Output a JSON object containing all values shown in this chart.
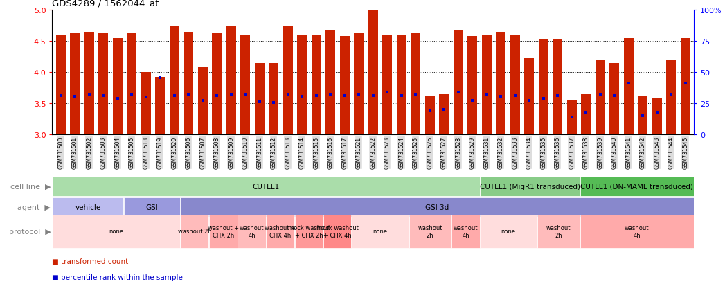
{
  "title": "GDS4289 / 1562044_at",
  "bar_color": "#CC2200",
  "percentile_color": "#0000CC",
  "ylim_left": [
    3.0,
    5.0
  ],
  "yticks_left": [
    3.0,
    3.5,
    4.0,
    4.5,
    5.0
  ],
  "yticks_right": [
    0,
    25,
    50,
    75,
    100
  ],
  "ytick_labels_right": [
    "0",
    "25",
    "50",
    "75",
    "100%"
  ],
  "sample_ids": [
    "GSM731500",
    "GSM731501",
    "GSM731502",
    "GSM731503",
    "GSM731504",
    "GSM731505",
    "GSM731518",
    "GSM731519",
    "GSM731520",
    "GSM731506",
    "GSM731507",
    "GSM731508",
    "GSM731509",
    "GSM731510",
    "GSM731511",
    "GSM731512",
    "GSM731513",
    "GSM731514",
    "GSM731515",
    "GSM731516",
    "GSM731517",
    "GSM731521",
    "GSM731522",
    "GSM731523",
    "GSM731524",
    "GSM731525",
    "GSM731526",
    "GSM731527",
    "GSM731528",
    "GSM731529",
    "GSM731531",
    "GSM731532",
    "GSM731533",
    "GSM731534",
    "GSM731535",
    "GSM731536",
    "GSM731537",
    "GSM731538",
    "GSM731539",
    "GSM731540",
    "GSM731541",
    "GSM731542",
    "GSM731543",
    "GSM731544",
    "GSM731545"
  ],
  "bar_values": [
    4.6,
    4.62,
    4.65,
    4.62,
    4.55,
    4.62,
    4.0,
    3.92,
    4.75,
    4.65,
    4.08,
    4.62,
    4.75,
    4.6,
    4.15,
    4.15,
    4.75,
    4.6,
    4.6,
    4.68,
    4.58,
    4.62,
    5.0,
    4.6,
    4.6,
    4.62,
    3.62,
    3.65,
    4.68,
    4.58,
    4.6,
    4.65,
    4.6,
    4.22,
    4.52,
    4.52,
    3.55,
    3.65,
    4.2,
    4.15,
    4.55,
    3.62,
    3.58,
    4.2,
    4.55
  ],
  "percentile_values": [
    3.62,
    3.61,
    3.63,
    3.62,
    3.58,
    3.63,
    3.6,
    3.91,
    3.62,
    3.63,
    3.55,
    3.62,
    3.65,
    3.63,
    3.52,
    3.51,
    3.65,
    3.61,
    3.62,
    3.65,
    3.62,
    3.63,
    3.62,
    3.68,
    3.62,
    3.63,
    3.38,
    3.4,
    3.68,
    3.55,
    3.63,
    3.61,
    3.62,
    3.55,
    3.58,
    3.62,
    3.28,
    3.35,
    3.65,
    3.62,
    3.82,
    3.3,
    3.35,
    3.65,
    3.82
  ],
  "cell_line_segments": [
    {
      "label": "CUTLL1",
      "start": 0,
      "end": 30,
      "color": "#AADDAA"
    },
    {
      "label": "CUTLL1 (MigR1 transduced)",
      "start": 30,
      "end": 37,
      "color": "#88CC88"
    },
    {
      "label": "CUTLL1 (DN-MAML transduced)",
      "start": 37,
      "end": 45,
      "color": "#55BB55"
    }
  ],
  "agent_segments": [
    {
      "label": "vehicle",
      "start": 0,
      "end": 5,
      "color": "#BBBBEE"
    },
    {
      "label": "GSI",
      "start": 5,
      "end": 9,
      "color": "#9999DD"
    },
    {
      "label": "GSI 3d",
      "start": 9,
      "end": 45,
      "color": "#8888CC"
    }
  ],
  "protocol_segments": [
    {
      "label": "none",
      "start": 0,
      "end": 9,
      "color": "#FFDDDD"
    },
    {
      "label": "washout 2h",
      "start": 9,
      "end": 11,
      "color": "#FFBBBB"
    },
    {
      "label": "washout +\nCHX 2h",
      "start": 11,
      "end": 13,
      "color": "#FFAAAA"
    },
    {
      "label": "washout\n4h",
      "start": 13,
      "end": 15,
      "color": "#FFBBBB"
    },
    {
      "label": "washout +\nCHX 4h",
      "start": 15,
      "end": 17,
      "color": "#FFAAAA"
    },
    {
      "label": "mock washout\n+ CHX 2h",
      "start": 17,
      "end": 19,
      "color": "#FF9999"
    },
    {
      "label": "mock washout\n+ CHX 4h",
      "start": 19,
      "end": 21,
      "color": "#FF8888"
    },
    {
      "label": "none",
      "start": 21,
      "end": 25,
      "color": "#FFDDDD"
    },
    {
      "label": "washout\n2h",
      "start": 25,
      "end": 28,
      "color": "#FFBBBB"
    },
    {
      "label": "washout\n4h",
      "start": 28,
      "end": 30,
      "color": "#FFAAAA"
    },
    {
      "label": "none",
      "start": 30,
      "end": 34,
      "color": "#FFDDDD"
    },
    {
      "label": "washout\n2h",
      "start": 34,
      "end": 37,
      "color": "#FFBBBB"
    },
    {
      "label": "washout\n4h",
      "start": 37,
      "end": 45,
      "color": "#FFAAAA"
    }
  ],
  "legend_items": [
    {
      "label": "transformed count",
      "color": "#CC2200"
    },
    {
      "label": "percentile rank within the sample",
      "color": "#0000CC"
    }
  ]
}
